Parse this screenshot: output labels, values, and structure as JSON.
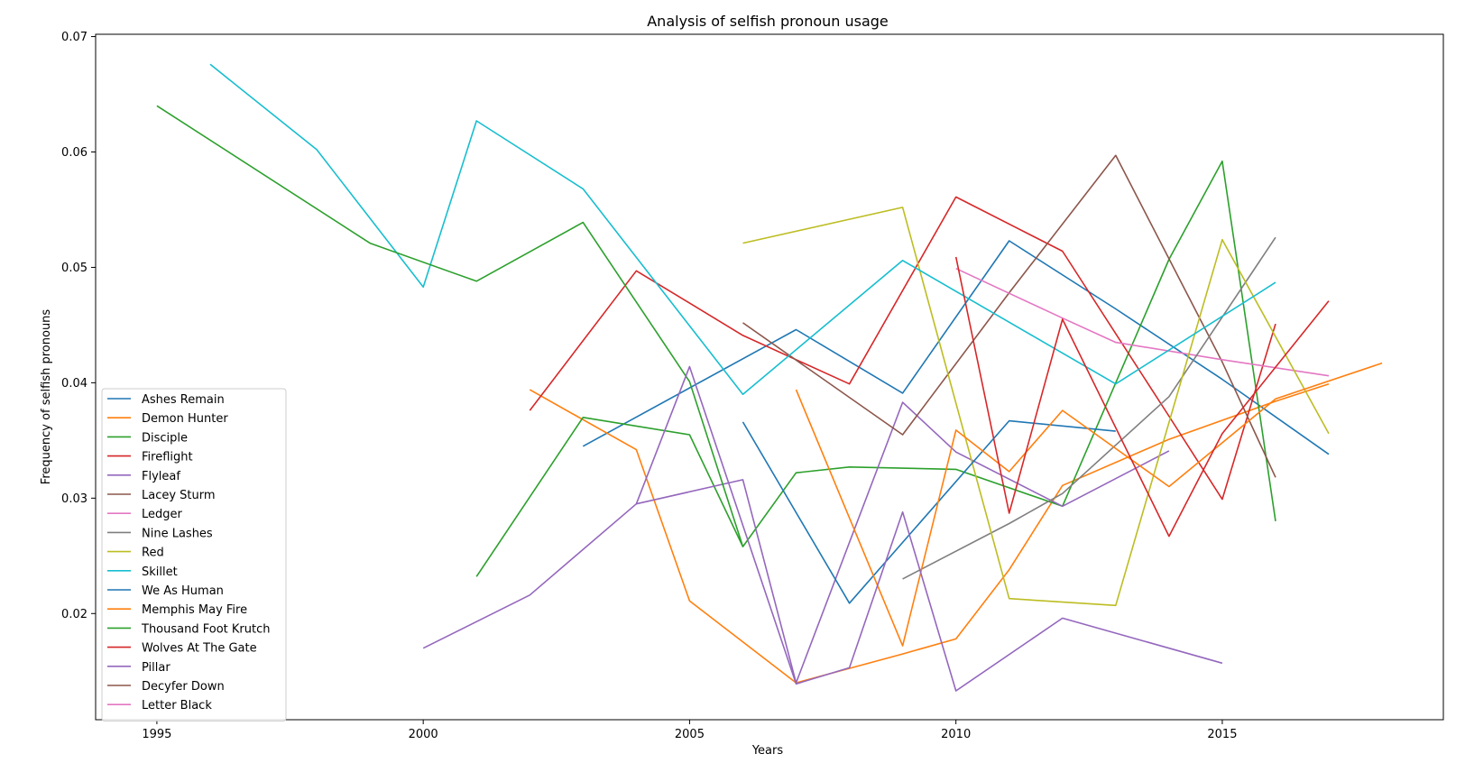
{
  "chart_data": {
    "type": "line",
    "title": "Analysis of selfish pronoun usage",
    "xlabel": "Years",
    "ylabel": "Frequency of selfish pronouns",
    "xlim": [
      1993.85,
      2019.15
    ],
    "ylim": [
      0.0108,
      0.0702
    ],
    "xticks": [
      1995,
      2000,
      2005,
      2010,
      2015
    ],
    "xtick_labels": [
      "1995",
      "2000",
      "2005",
      "2010",
      "2015"
    ],
    "yticks": [
      0.02,
      0.03,
      0.04,
      0.05,
      0.06,
      0.07
    ],
    "ytick_labels": [
      "0.02",
      "0.03",
      "0.04",
      "0.05",
      "0.06",
      "0.07"
    ],
    "grid": false,
    "legend_position": "lower-left",
    "series": [
      {
        "name": "Ashes Remain",
        "color": "#1f77b4",
        "x": [
          2003,
          2007,
          2009,
          2011,
          2013,
          2015,
          2017
        ],
        "y": [
          0.0345,
          0.0446,
          0.0391,
          0.0523,
          0.0464,
          0.0403,
          0.0338
        ]
      },
      {
        "name": "Demon Hunter",
        "color": "#ff7f0e",
        "x": [
          2002,
          2004,
          2005,
          2007,
          2009,
          2010,
          2011,
          2012,
          2014,
          2016,
          2017
        ],
        "y": [
          0.0394,
          0.0342,
          0.0211,
          0.014,
          0.0165,
          0.0178,
          0.0238,
          0.0311,
          0.0351,
          0.0384,
          0.0399
        ]
      },
      {
        "name": "Disciple",
        "color": "#2ca02c",
        "x": [
          2001,
          2003,
          2005,
          2006,
          2007,
          2008,
          2010,
          2012,
          2014,
          2015,
          2016
        ],
        "y": [
          0.0232,
          0.037,
          0.0355,
          0.0258,
          0.0322,
          0.0327,
          0.0325,
          0.0293,
          0.0507,
          0.0592,
          0.028
        ]
      },
      {
        "name": "Fireflight",
        "color": "#d62728",
        "x": [
          2002,
          2004,
          2006,
          2008,
          2010,
          2012,
          2014,
          2015,
          2016
        ],
        "y": [
          0.0376,
          0.0497,
          0.0441,
          0.0399,
          0.0561,
          0.0514,
          0.0371,
          0.0299,
          0.0451
        ]
      },
      {
        "name": "Flyleaf",
        "color": "#9467bd",
        "x": [
          2004,
          2006,
          2007,
          2009,
          2010,
          2012,
          2014
        ],
        "y": [
          0.0295,
          0.0316,
          0.014,
          0.0383,
          0.034,
          0.0293,
          0.0341
        ]
      },
      {
        "name": "Lacey Sturm",
        "color": "#8c564b",
        "x": [
          2006,
          2009,
          2011,
          2013,
          2015,
          2016
        ],
        "y": [
          0.0452,
          0.0355,
          0.0478,
          0.0597,
          0.0418,
          0.0318
        ]
      },
      {
        "name": "Ledger",
        "color": "#e377c2",
        "x": [
          2010,
          2012,
          2013,
          2015,
          2017
        ],
        "y": [
          0.0499,
          0.0456,
          0.0435,
          0.042,
          0.0406
        ]
      },
      {
        "name": "Nine Lashes",
        "color": "#7f7f7f",
        "x": [
          2009,
          2011,
          2012,
          2014,
          2016
        ],
        "y": [
          0.023,
          0.0278,
          0.0304,
          0.0388,
          0.0526
        ]
      },
      {
        "name": "Red",
        "color": "#bcbd22",
        "x": [
          2006,
          2009,
          2011,
          2013,
          2015,
          2017
        ],
        "y": [
          0.0521,
          0.0552,
          0.0213,
          0.0207,
          0.0524,
          0.0356
        ]
      },
      {
        "name": "Skillet",
        "color": "#17becf",
        "x": [
          1996,
          1998,
          2000,
          2001,
          2003,
          2006,
          2009,
          2013,
          2016
        ],
        "y": [
          0.0676,
          0.0602,
          0.0483,
          0.0627,
          0.0568,
          0.039,
          0.0506,
          0.0399,
          0.0487
        ]
      },
      {
        "name": "We As Human",
        "color": "#1f77b4",
        "x": [
          2006,
          2008,
          2011,
          2013
        ],
        "y": [
          0.0366,
          0.0209,
          0.0367,
          0.0358
        ]
      },
      {
        "name": "Memphis May Fire",
        "color": "#ff7f0e",
        "x": [
          2007,
          2009,
          2010,
          2011,
          2012,
          2014,
          2016,
          2018
        ],
        "y": [
          0.0394,
          0.0172,
          0.0359,
          0.0323,
          0.0376,
          0.031,
          0.0386,
          0.0417
        ]
      },
      {
        "name": "Thousand Foot Krutch",
        "color": "#2ca02c",
        "x": [
          1995,
          1999,
          2001,
          2003,
          2005,
          2006
        ],
        "y": [
          0.064,
          0.0521,
          0.0488,
          0.0539,
          0.0401,
          0.0258
        ]
      },
      {
        "name": "Wolves At The Gate",
        "color": "#d62728",
        "x": [
          2010,
          2011,
          2012,
          2014,
          2015,
          2017
        ],
        "y": [
          0.0509,
          0.0287,
          0.0455,
          0.0267,
          0.0356,
          0.0471
        ]
      },
      {
        "name": "Pillar",
        "color": "#9467bd",
        "x": [
          2000,
          2002,
          2004,
          2005,
          2007,
          2008,
          2009,
          2010,
          2012,
          2015
        ],
        "y": [
          0.017,
          0.0216,
          0.0295,
          0.0414,
          0.0139,
          0.0153,
          0.0288,
          0.0133,
          0.0196,
          0.0157
        ]
      },
      {
        "name": "Decyfer Down",
        "color": "#8c564b",
        "x": [],
        "y": []
      },
      {
        "name": "Letter Black",
        "color": "#e377c2",
        "x": [],
        "y": []
      }
    ]
  }
}
